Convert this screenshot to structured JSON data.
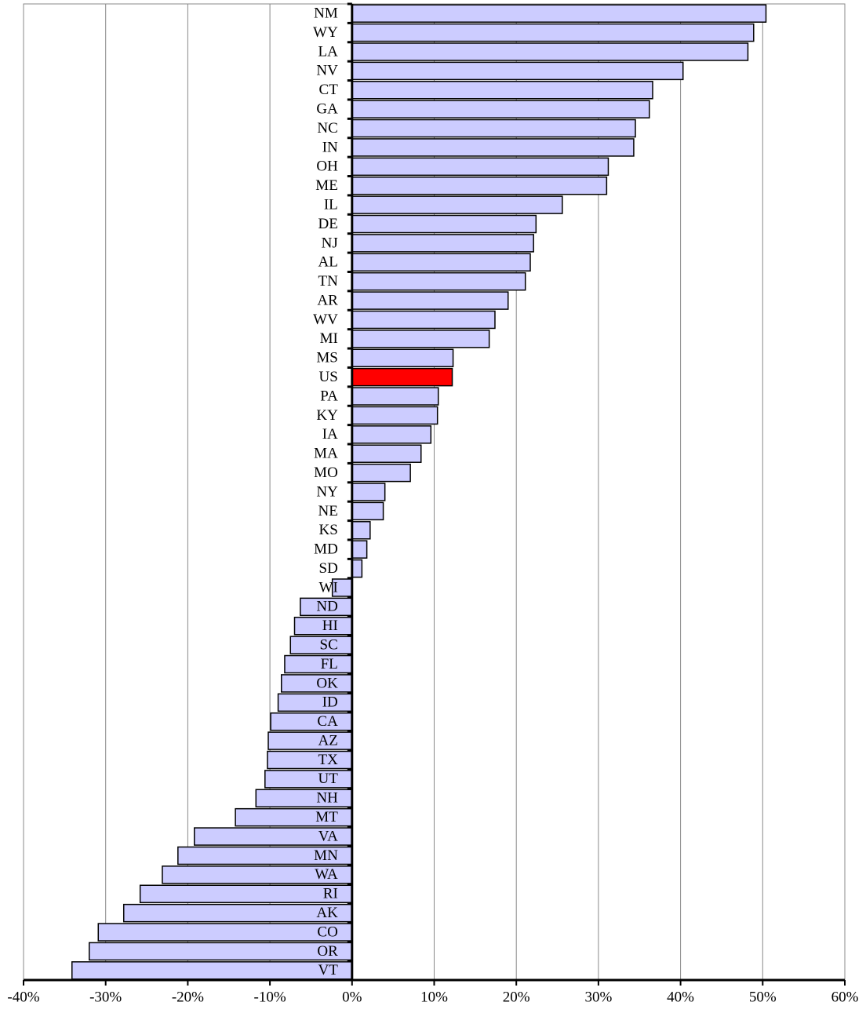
{
  "chart_data": {
    "type": "barh",
    "categories": [
      "NM",
      "WY",
      "LA",
      "NV",
      "CT",
      "GA",
      "NC",
      "IN",
      "OH",
      "ME",
      "IL",
      "DE",
      "NJ",
      "AL",
      "TN",
      "AR",
      "WV",
      "MI",
      "MS",
      "US",
      "PA",
      "KY",
      "IA",
      "MA",
      "MO",
      "NY",
      "NE",
      "KS",
      "MD",
      "SD",
      "WI",
      "ND",
      "HI",
      "SC",
      "FL",
      "OK",
      "ID",
      "CA",
      "AZ",
      "TX",
      "UT",
      "NH",
      "MT",
      "VA",
      "MN",
      "WA",
      "RI",
      "AK",
      "CO",
      "OR",
      "VT"
    ],
    "values": [
      50.4,
      48.9,
      48.2,
      40.3,
      36.6,
      36.2,
      34.5,
      34.3,
      31.2,
      31.0,
      25.6,
      22.4,
      22.1,
      21.7,
      21.1,
      19.0,
      17.4,
      16.7,
      12.3,
      12.2,
      10.5,
      10.4,
      9.6,
      8.4,
      7.1,
      4.0,
      3.8,
      2.2,
      1.8,
      1.2,
      -2.4,
      -6.3,
      -7.0,
      -7.5,
      -8.2,
      -8.6,
      -9.0,
      -9.9,
      -10.2,
      -10.3,
      -10.6,
      -11.7,
      -14.2,
      -19.2,
      -21.2,
      -23.1,
      -25.8,
      -27.8,
      -30.9,
      -32.0,
      -34.1
    ],
    "colors": [
      "#ccccff",
      "#ccccff",
      "#ccccff",
      "#ccccff",
      "#ccccff",
      "#ccccff",
      "#ccccff",
      "#ccccff",
      "#ccccff",
      "#ccccff",
      "#ccccff",
      "#ccccff",
      "#ccccff",
      "#ccccff",
      "#ccccff",
      "#ccccff",
      "#ccccff",
      "#ccccff",
      "#ccccff",
      "#ff0000",
      "#ccccff",
      "#ccccff",
      "#ccccff",
      "#ccccff",
      "#ccccff",
      "#ccccff",
      "#ccccff",
      "#ccccff",
      "#ccccff",
      "#ccccff",
      "#ccccff",
      "#ccccff",
      "#ccccff",
      "#ccccff",
      "#ccccff",
      "#ccccff",
      "#ccccff",
      "#ccccff",
      "#ccccff",
      "#ccccff",
      "#ccccff",
      "#ccccff",
      "#ccccff",
      "#ccccff",
      "#ccccff",
      "#ccccff",
      "#ccccff",
      "#ccccff",
      "#ccccff",
      "#ccccff",
      "#ccccff"
    ],
    "xlim": [
      -40,
      60
    ],
    "xticks": [
      {
        "value": -40,
        "label": "-40%"
      },
      {
        "value": -30,
        "label": "-30%"
      },
      {
        "value": -20,
        "label": "-20%"
      },
      {
        "value": -10,
        "label": "-10%"
      },
      {
        "value": 0,
        "label": "0%"
      },
      {
        "value": 10,
        "label": "10%"
      },
      {
        "value": 20,
        "label": "20%"
      },
      {
        "value": 30,
        "label": "30%"
      },
      {
        "value": 40,
        "label": "40%"
      },
      {
        "value": 50,
        "label": "50%"
      },
      {
        "value": 60,
        "label": "60%"
      }
    ],
    "grid": true
  }
}
